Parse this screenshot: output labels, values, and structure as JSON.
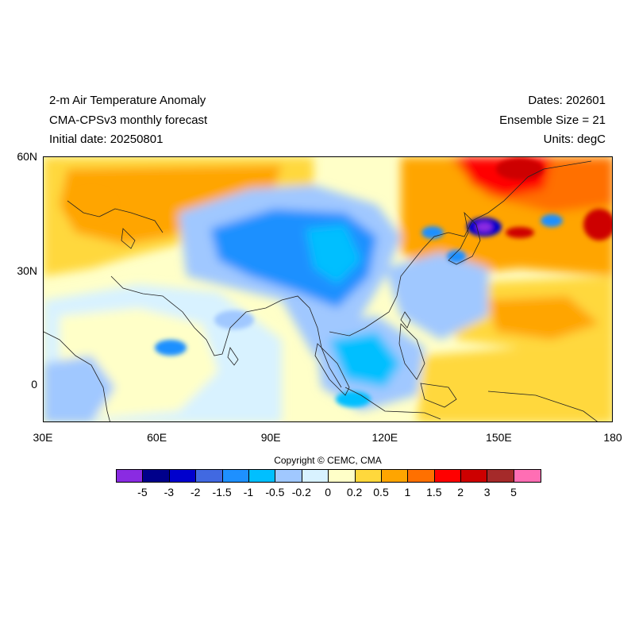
{
  "header": {
    "title": "2-m Air Temperature Anomaly",
    "model": "CMA-CPSv3 monthly forecast",
    "initial_date": "Initial date: 20250801",
    "dates": "Dates: 202601",
    "ensemble": "Ensemble Size = 21",
    "units": "Units: degC"
  },
  "map": {
    "lon_range": [
      30,
      180
    ],
    "lat_range": [
      -10,
      60
    ],
    "lat_ticks": [
      "60N",
      "30N",
      "0"
    ],
    "lon_ticks": [
      "30E",
      "60E",
      "90E",
      "120E",
      "150E",
      "180"
    ]
  },
  "copyright": "Copyright © CEMC, CMA",
  "colorbar": {
    "colors": [
      "#8a2be2",
      "#00008b",
      "#0000cd",
      "#4169e1",
      "#1e90ff",
      "#00bfff",
      "#a0c8ff",
      "#d8f2ff",
      "#ffffc8",
      "#ffd83c",
      "#ffa500",
      "#ff7000",
      "#ff0000",
      "#cd0000",
      "#a52a2a",
      "#ff6eb4"
    ],
    "labels": [
      "-5",
      "-3",
      "-2",
      "-1.5",
      "-1",
      "-0.5",
      "-0.2",
      "0",
      "0.2",
      "0.5",
      "1",
      "1.5",
      "2",
      "3",
      "5"
    ]
  }
}
